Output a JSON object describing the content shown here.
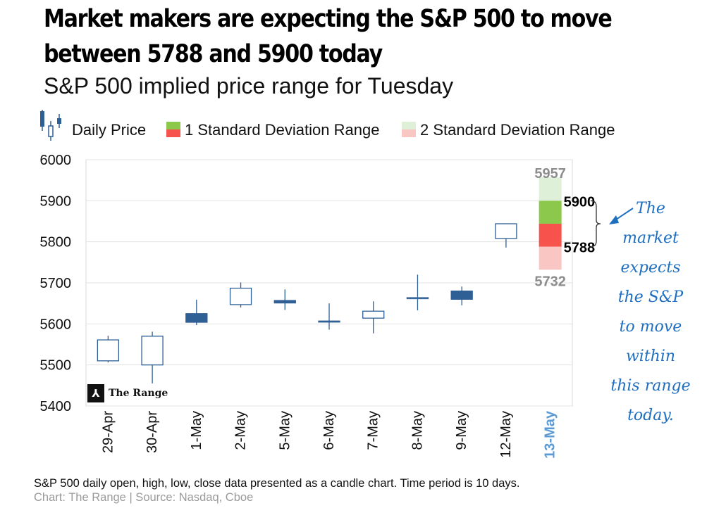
{
  "title_line1": "Market makers are expecting the S&P 500 to move",
  "title_line2": "between 5788 and 5900 today",
  "subtitle_prefix": "S&P 500 implied price range for",
  "subtitle_day": "Tuesday",
  "legend": {
    "daily_price": "Daily Price",
    "sd1": "1 Standard Deviation",
    "sd1_range": "Range",
    "sd2": "2 Standard Deviation",
    "sd2_range": "Range"
  },
  "annotation": [
    "The",
    "market",
    "expects",
    "the S&P",
    "to move",
    "within",
    "this range",
    "today."
  ],
  "logo": {
    "glyph": "⅄",
    "text": "The Range"
  },
  "footnote": "S&P 500 daily open, high, low, close data presented as a candle chart. Time period is 10 days.",
  "source": "Chart: The Range | Source: Nasdaq, Cboe",
  "colors": {
    "up_outline": "#2e5f95",
    "down_fill": "#2e5f95",
    "sd1_upper": "#8cc84b",
    "sd1_lower": "#f7524c",
    "sd2_upper": "#dff0d8",
    "sd2_lower": "#f9c6c4",
    "highlight_day": "#5b9bd5",
    "annotation": "#1f6fc0"
  },
  "chart_data": {
    "type": "candlestick",
    "ylim": [
      5400,
      6000
    ],
    "yticks": [
      5400,
      5500,
      5600,
      5700,
      5800,
      5900,
      6000
    ],
    "categories": [
      "29-Apr",
      "30-Apr",
      "1-May",
      "2-May",
      "5-May",
      "6-May",
      "7-May",
      "8-May",
      "9-May",
      "12-May",
      "13-May"
    ],
    "candles": [
      {
        "date": "29-Apr",
        "open": 5510,
        "high": 5571,
        "low": 5506,
        "close": 5561
      },
      {
        "date": "30-Apr",
        "open": 5500,
        "high": 5581,
        "low": 5455,
        "close": 5570
      },
      {
        "date": "1-May",
        "open": 5625,
        "high": 5659,
        "low": 5597,
        "close": 5604
      },
      {
        "date": "2-May",
        "open": 5647,
        "high": 5701,
        "low": 5640,
        "close": 5687
      },
      {
        "date": "5-May",
        "open": 5657,
        "high": 5684,
        "low": 5634,
        "close": 5651
      },
      {
        "date": "6-May",
        "open": 5607,
        "high": 5650,
        "low": 5586,
        "close": 5606
      },
      {
        "date": "7-May",
        "open": 5614,
        "high": 5655,
        "low": 5577,
        "close": 5631
      },
      {
        "date": "8-May",
        "open": 5663,
        "high": 5720,
        "low": 5633,
        "close": 5664
      },
      {
        "date": "9-May",
        "open": 5680,
        "high": 5691,
        "low": 5645,
        "close": 5660
      },
      {
        "date": "12-May",
        "open": 5808,
        "high": 5845,
        "low": 5786,
        "close": 5844
      }
    ],
    "implied_range": {
      "date": "13-May",
      "center": 5844,
      "sd1_low": 5788,
      "sd1_high": 5900,
      "sd2_low": 5732,
      "sd2_high": 5957
    }
  }
}
